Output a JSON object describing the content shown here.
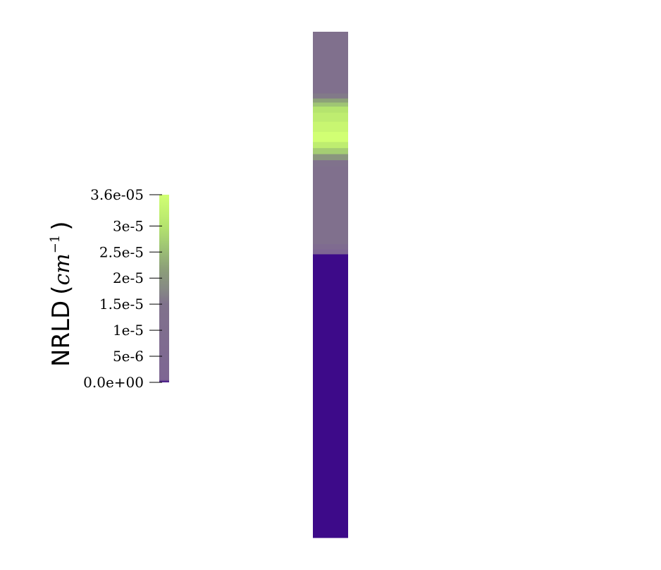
{
  "chart_data": {
    "type": "heatmap",
    "variable": "NRLD",
    "unit": "cm",
    "unit_exponent": "−1",
    "colormap": {
      "min": 0.0,
      "max": 3.6e-05,
      "stops": [
        {
          "value": 0.0,
          "color": "#3d0a89"
        },
        {
          "value": 5e-07,
          "color": "#7e6693"
        },
        {
          "value": 1.5e-05,
          "color": "#80728c"
        },
        {
          "value": 1.8e-05,
          "color": "#868a84"
        },
        {
          "value": 2.2e-05,
          "color": "#8da178"
        },
        {
          "value": 2.6e-05,
          "color": "#9fc574"
        },
        {
          "value": 3e-05,
          "color": "#b5e46e"
        },
        {
          "value": 3.6e-05,
          "color": "#d1ff73"
        }
      ]
    },
    "colorbar_ticks": [
      {
        "value": 3.6e-05,
        "label": "3.6e-05"
      },
      {
        "value": 3e-05,
        "label": "3e-5"
      },
      {
        "value": 2.5e-05,
        "label": "2.5e-5"
      },
      {
        "value": 2e-05,
        "label": "2e-5"
      },
      {
        "value": 1.5e-05,
        "label": "1.5e-5"
      },
      {
        "value": 1e-05,
        "label": "1e-5"
      },
      {
        "value": 5e-06,
        "label": "5e-6"
      },
      {
        "value": 0.0,
        "label": "0.0e+00"
      }
    ],
    "profile_bands": [
      {
        "depth": [
          0.0,
          0.122
        ],
        "value": 1.25e-05
      },
      {
        "depth": [
          0.122,
          0.132
        ],
        "value": 1.6e-05
      },
      {
        "depth": [
          0.132,
          0.14
        ],
        "value": 2.2e-05
      },
      {
        "depth": [
          0.14,
          0.148
        ],
        "value": 2.6e-05
      },
      {
        "depth": [
          0.148,
          0.16
        ],
        "value": 3e-05
      },
      {
        "depth": [
          0.16,
          0.178
        ],
        "value": 3.2e-05
      },
      {
        "depth": [
          0.178,
          0.198
        ],
        "value": 3.4e-05
      },
      {
        "depth": [
          0.198,
          0.218
        ],
        "value": 3.6e-05
      },
      {
        "depth": [
          0.218,
          0.23
        ],
        "value": 3.2e-05
      },
      {
        "depth": [
          0.23,
          0.242
        ],
        "value": 2.7e-05
      },
      {
        "depth": [
          0.242,
          0.254
        ],
        "value": 2e-05
      },
      {
        "depth": [
          0.254,
          0.266
        ],
        "value": 1.5e-05
      },
      {
        "depth": [
          0.266,
          0.42
        ],
        "value": 1.25e-05
      },
      {
        "depth": [
          0.42,
          0.43
        ],
        "value": 6e-06
      },
      {
        "depth": [
          0.43,
          0.44
        ],
        "value": 1e-06
      },
      {
        "depth": [
          0.44,
          1.0
        ],
        "value": 0.0
      }
    ]
  }
}
